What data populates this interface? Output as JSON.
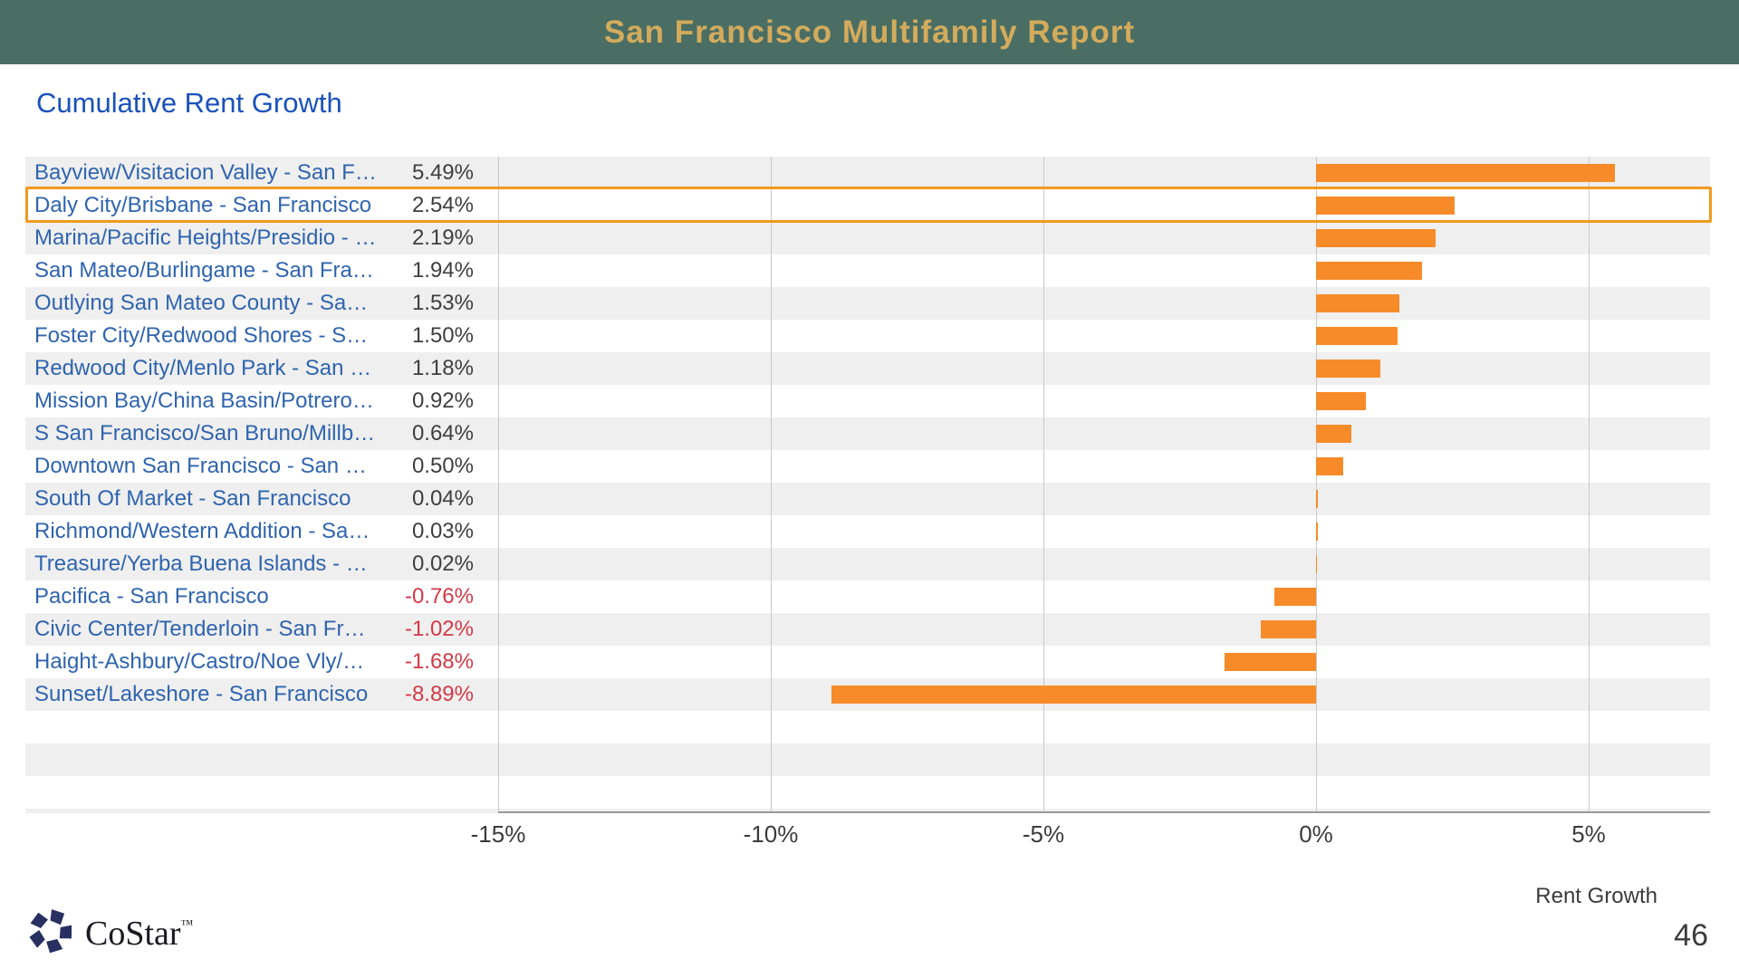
{
  "header": {
    "title": "San Francisco Multifamily Report"
  },
  "chart_data": {
    "type": "bar",
    "orientation": "horizontal",
    "title": "Cumulative Rent Growth",
    "xlabel": "Rent Growth",
    "categories": [
      "Bayview/Visitacion Valley - San F…",
      "Daly City/Brisbane - San Francisco",
      "Marina/Pacific Heights/Presidio - …",
      "San Mateo/Burlingame - San Fra…",
      "Outlying San Mateo County - Sa…",
      "Foster City/Redwood Shores - S…",
      "Redwood City/Menlo Park - San …",
      "Mission Bay/China Basin/Potrero…",
      "S San Francisco/San Bruno/Millb…",
      "Downtown San Francisco - San …",
      "South Of Market - San Francisco",
      "Richmond/Western Addition - Sa…",
      "Treasure/Yerba Buena Islands - …",
      "Pacifica - San Francisco",
      "Civic Center/Tenderloin - San Fr…",
      "Haight-Ashbury/Castro/Noe Vly/…",
      "Sunset/Lakeshore - San Francisco"
    ],
    "values": [
      5.49,
      2.54,
      2.19,
      1.94,
      1.53,
      1.5,
      1.18,
      0.92,
      0.64,
      0.5,
      0.04,
      0.03,
      0.02,
      -0.76,
      -1.02,
      -1.68,
      -8.89
    ],
    "value_labels": [
      "5.49%",
      "2.54%",
      "2.19%",
      "1.94%",
      "1.53%",
      "1.50%",
      "1.18%",
      "0.92%",
      "0.64%",
      "0.50%",
      "0.04%",
      "0.03%",
      "0.02%",
      "-0.76%",
      "-1.02%",
      "-1.68%",
      "-8.89%"
    ],
    "x_ticks": {
      "labels": [
        "-15%",
        "-10%",
        "-5%",
        "0%",
        "5%"
      ],
      "values": [
        -15,
        -10,
        -5,
        0,
        5
      ]
    },
    "xlim": [
      -15.0,
      7.2
    ],
    "grid": true,
    "highlight_index": 1,
    "legend": null
  },
  "colors": {
    "header_bg": "#4a6e64",
    "header_text": "#d3ab5c",
    "chart_title_blue": "#1a52ba",
    "row_label_blue": "#2f64ae",
    "value_positive": "#3e3e3e",
    "value_negative": "#d23a47",
    "bar_orange": "#f78b29",
    "highlight_orange": "#ef9a1d",
    "stripe_gray": "#efefef"
  },
  "footer": {
    "brand": "CoStar",
    "trademark": "™",
    "page_number": "46"
  }
}
